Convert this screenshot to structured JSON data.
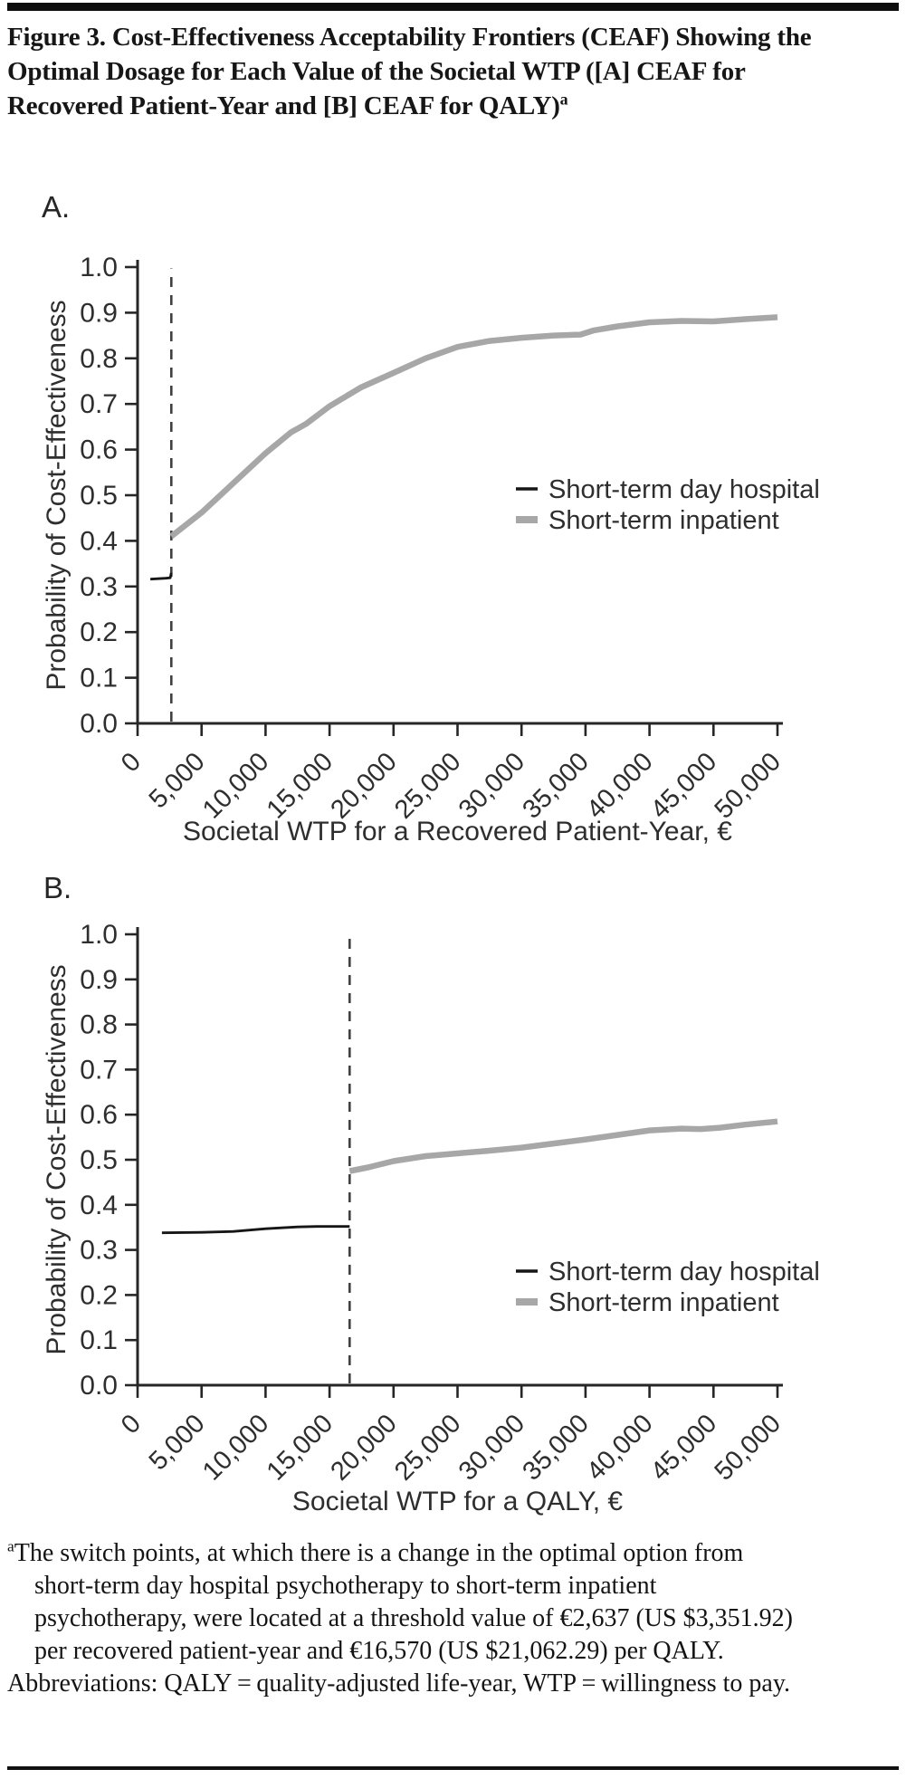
{
  "title": {
    "text": "Figure 3. Cost-Effectiveness Acceptability Frontiers (CEAF) Showing the Optimal Dosage for Each Value of the Societal WTP ([A] CEAF for Recovered Patient-Year and [B] CEAF for QALY)",
    "superscript": "a"
  },
  "colors": {
    "axis": "#262626",
    "tick_text": "#2e2e2e",
    "dashed_line": "#414141",
    "day_hospital_line": "#161616",
    "inpatient_line": "#a7a7a7",
    "rule": "#0d0d0d",
    "background": "#ffffff"
  },
  "footnote": {
    "marker": "a",
    "text": "The switch points, at which there is a change in the optimal option from short-term day hospital psychotherapy to short-term inpatient psychotherapy, were located at a threshold value of €2,637 (US $3,351.92) per recovered patient-year and €16,570 (US $21,062.29) per QALY.",
    "abbreviations": "Abbreviations: QALY = quality-adjusted life-year, WTP = willingness to pay."
  },
  "chart_data": [
    {
      "panel": "A",
      "panel_label": "A.",
      "type": "line",
      "xlabel": "Societal WTP for a Recovered Patient-Year, €",
      "ylabel": "Probability of Cost-Effectiveness",
      "xlim": [
        0,
        50000
      ],
      "ylim": [
        0.0,
        1.0
      ],
      "xticks": [
        0,
        5000,
        10000,
        15000,
        20000,
        25000,
        30000,
        35000,
        40000,
        45000,
        50000
      ],
      "yticks": [
        0.0,
        0.1,
        0.2,
        0.3,
        0.4,
        0.5,
        0.6,
        0.7,
        0.8,
        0.9,
        1.0
      ],
      "grid": false,
      "legend_position": "center-right",
      "switch_point_x": 2637,
      "series": [
        {
          "name": "Short-term day hospital",
          "color": "#161616",
          "stroke_width": 2.8,
          "legend_stroke_width": 3.4,
          "points": [
            [
              1000,
              0.316
            ],
            [
              2200,
              0.318
            ],
            [
              2550,
              0.319
            ],
            [
              2637,
              0.33
            ]
          ]
        },
        {
          "name": "Short-term inpatient",
          "color": "#a7a7a7",
          "stroke_width": 6.5,
          "legend_stroke_width": 8,
          "points": [
            [
              2637,
              0.41
            ],
            [
              5000,
              0.462
            ],
            [
              7500,
              0.527
            ],
            [
              10000,
              0.592
            ],
            [
              12000,
              0.638
            ],
            [
              13200,
              0.657
            ],
            [
              15000,
              0.695
            ],
            [
              17500,
              0.737
            ],
            [
              20000,
              0.768
            ],
            [
              22500,
              0.8
            ],
            [
              25000,
              0.825
            ],
            [
              27500,
              0.838
            ],
            [
              30000,
              0.845
            ],
            [
              32500,
              0.85
            ],
            [
              34600,
              0.852
            ],
            [
              35600,
              0.861
            ],
            [
              37500,
              0.87
            ],
            [
              40000,
              0.879
            ],
            [
              42500,
              0.882
            ],
            [
              45000,
              0.881
            ],
            [
              47500,
              0.886
            ],
            [
              50000,
              0.89
            ]
          ]
        }
      ]
    },
    {
      "panel": "B",
      "panel_label": "B.",
      "type": "line",
      "xlabel": "Societal WTP for a QALY, €",
      "ylabel": "Probability of Cost-Effectiveness",
      "xlim": [
        0,
        50000
      ],
      "ylim": [
        0.0,
        1.0
      ],
      "xticks": [
        0,
        5000,
        10000,
        15000,
        20000,
        25000,
        30000,
        35000,
        40000,
        45000,
        50000
      ],
      "yticks": [
        0.0,
        0.1,
        0.2,
        0.3,
        0.4,
        0.5,
        0.6,
        0.7,
        0.8,
        0.9,
        1.0
      ],
      "grid": false,
      "legend_position": "lower-right",
      "switch_point_x": 16570,
      "series": [
        {
          "name": "Short-term day hospital",
          "color": "#161616",
          "stroke_width": 2.8,
          "legend_stroke_width": 3.4,
          "points": [
            [
              1900,
              0.338
            ],
            [
              5000,
              0.339
            ],
            [
              7500,
              0.341
            ],
            [
              10000,
              0.347
            ],
            [
              12500,
              0.351
            ],
            [
              14000,
              0.352
            ],
            [
              16570,
              0.352
            ]
          ]
        },
        {
          "name": "Short-term inpatient",
          "color": "#a7a7a7",
          "stroke_width": 6.5,
          "legend_stroke_width": 8,
          "points": [
            [
              16570,
              0.475
            ],
            [
              18000,
              0.483
            ],
            [
              20000,
              0.497
            ],
            [
              22500,
              0.508
            ],
            [
              25000,
              0.514
            ],
            [
              27500,
              0.52
            ],
            [
              30000,
              0.527
            ],
            [
              32500,
              0.536
            ],
            [
              35000,
              0.545
            ],
            [
              37500,
              0.555
            ],
            [
              40000,
              0.565
            ],
            [
              42500,
              0.569
            ],
            [
              44000,
              0.568
            ],
            [
              45500,
              0.571
            ],
            [
              47500,
              0.578
            ],
            [
              50000,
              0.585
            ]
          ]
        }
      ]
    }
  ]
}
